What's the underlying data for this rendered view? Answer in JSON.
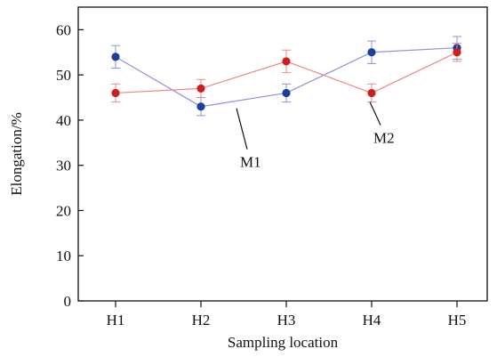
{
  "chart_data": {
    "type": "line",
    "categories": [
      "H1",
      "H2",
      "H3",
      "H4",
      "H5"
    ],
    "xlabel": "Sampling location",
    "ylabel": "Elongation/%",
    "ylim": [
      0,
      65
    ],
    "yticks": [
      0,
      10,
      20,
      30,
      40,
      50,
      60
    ],
    "grid": false,
    "legend": "none",
    "series": [
      {
        "name": "M1",
        "values": [
          54,
          43,
          46,
          55,
          56
        ],
        "errors": [
          2.5,
          2.0,
          2.0,
          2.5,
          2.5
        ],
        "line_color": "#8d93d6",
        "marker_color": "#1f3d99"
      },
      {
        "name": "M2",
        "values": [
          46,
          47,
          53,
          46,
          55
        ],
        "errors": [
          2.0,
          2.0,
          2.5,
          2.0,
          2.0
        ],
        "line_color": "#e88a8a",
        "marker_color": "#cc1f1f"
      }
    ],
    "annotations": [
      {
        "text": "M1",
        "series": "M1",
        "point_index": 1
      },
      {
        "text": "M2",
        "series": "M2",
        "point_index": 3
      }
    ]
  }
}
